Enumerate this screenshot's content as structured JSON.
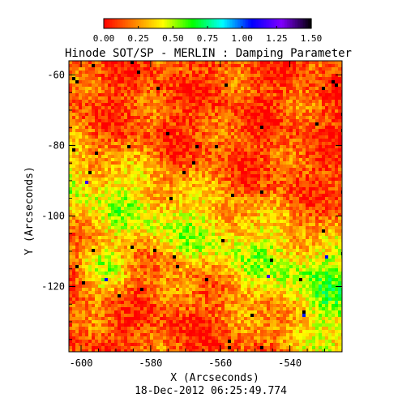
{
  "chart_data": {
    "type": "heatmap",
    "title": "Hinode SOT/SP - MERLIN : Damping Parameter",
    "xlabel": "X (Arcseconds)",
    "ylabel": "Y (Arcseconds)",
    "timestamp": "18-Dec-2012 06:25:49.774",
    "xlim": [
      -603.5,
      -525
    ],
    "ylim": [
      -138.5,
      -56
    ],
    "x_ticks": [
      -600,
      -580,
      -560,
      -540
    ],
    "x_tick_labels": [
      "-600",
      "-580",
      "-560",
      "-540"
    ],
    "y_ticks": [
      -60,
      -80,
      -100,
      -120
    ],
    "y_tick_labels": [
      "-60",
      "-80",
      "-100",
      "-120"
    ],
    "colorbar": {
      "min": 0.0,
      "max": 1.5,
      "ticks": [
        0.0,
        0.25,
        0.5,
        0.75,
        1.0,
        1.25,
        1.5
      ],
      "tick_labels": [
        "0.00",
        "0.25",
        "0.50",
        "0.75",
        "1.00",
        "1.25",
        "1.50"
      ],
      "colormap": [
        "#ff0000",
        "#ff8000",
        "#ffff00",
        "#00ff00",
        "#00ffff",
        "#0000ff",
        "#8000ff",
        "#000000"
      ]
    },
    "field_description_values": {
      "dominant_range": [
        0.0,
        0.5
      ],
      "regions": [
        {
          "name": "upper",
          "typical": 0.12
        },
        {
          "name": "middle-diagonal",
          "typical": 0.42
        },
        {
          "name": "lower-right",
          "typical": 0.55
        }
      ]
    }
  }
}
